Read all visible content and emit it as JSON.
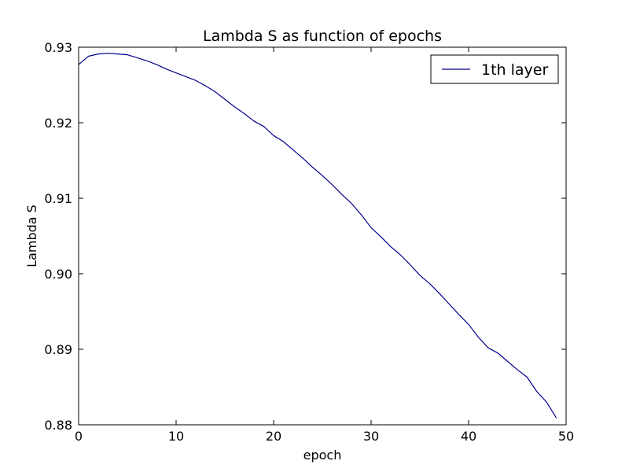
{
  "chart_data": {
    "type": "line",
    "title": "Lambda S as function of epochs",
    "xlabel": "epoch",
    "ylabel": "Lambda S",
    "xlim": [
      0,
      50
    ],
    "ylim": [
      0.88,
      0.93
    ],
    "x_ticks": [
      0,
      10,
      20,
      30,
      40,
      50
    ],
    "x_tick_labels": [
      "0",
      "10",
      "20",
      "30",
      "40",
      "50"
    ],
    "y_ticks": [
      0.88,
      0.89,
      0.9,
      0.91,
      0.92,
      0.93
    ],
    "y_tick_labels": [
      "0.88",
      "0.89",
      "0.90",
      "0.91",
      "0.92",
      "0.93"
    ],
    "grid": false,
    "legend_position": "top-right",
    "series": [
      {
        "name": "1th layer",
        "color": "#00008b",
        "x": [
          0,
          1,
          2,
          3,
          4,
          5,
          6,
          7,
          8,
          9,
          10,
          11,
          12,
          13,
          14,
          15,
          16,
          17,
          18,
          19,
          20,
          21,
          22,
          23,
          24,
          25,
          26,
          27,
          28,
          29,
          30,
          31,
          32,
          33,
          34,
          35,
          36,
          37,
          38,
          39,
          40,
          41,
          42,
          43,
          44,
          45,
          46,
          47,
          48,
          49
        ],
        "y": [
          0.9277,
          0.9288,
          0.9291,
          0.9292,
          0.9291,
          0.929,
          0.9286,
          0.9282,
          0.9277,
          0.9271,
          0.9266,
          0.9261,
          0.9256,
          0.9249,
          0.9241,
          0.9231,
          0.9221,
          0.9212,
          0.9202,
          0.9195,
          0.9183,
          0.9175,
          0.9164,
          0.9153,
          0.9141,
          0.913,
          0.9118,
          0.9105,
          0.9093,
          0.9078,
          0.9061,
          0.9049,
          0.9036,
          0.9025,
          0.9012,
          0.8998,
          0.8987,
          0.8974,
          0.896,
          0.8946,
          0.8933,
          0.8916,
          0.8902,
          0.8895,
          0.8884,
          0.8873,
          0.8863,
          0.8844,
          0.883,
          0.8809
        ]
      }
    ]
  }
}
